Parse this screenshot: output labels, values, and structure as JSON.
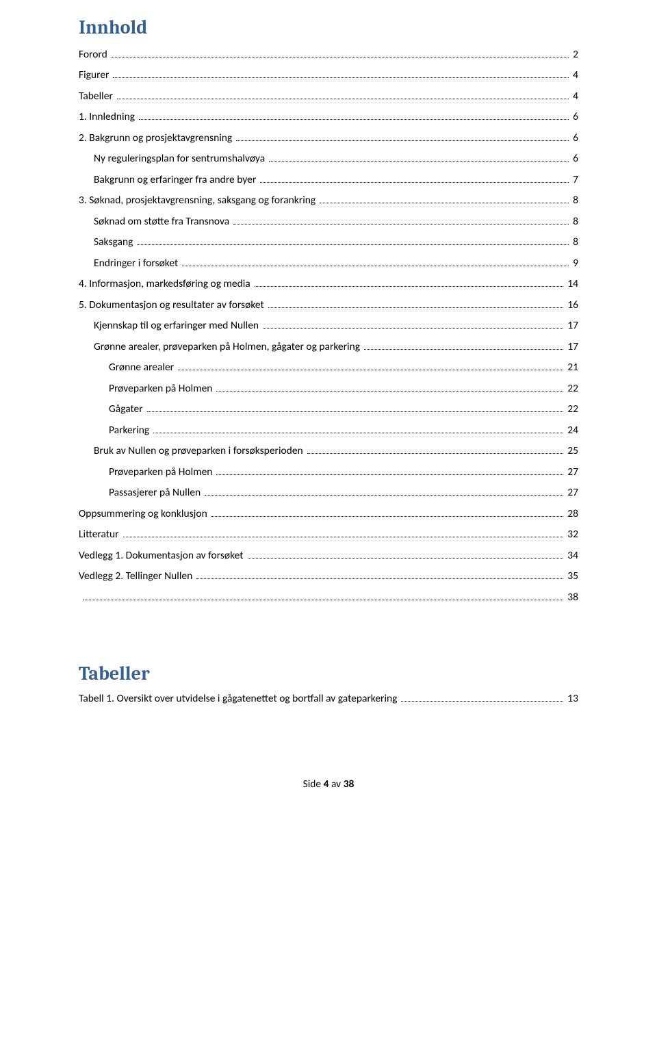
{
  "colors": {
    "heading": "#365f91",
    "text": "#000000",
    "background": "#ffffff",
    "dots": "#000000"
  },
  "typography": {
    "heading_font": "Cambria",
    "body_font": "Calibri",
    "heading_fontsize": 28,
    "body_fontsize": 15.5
  },
  "heading1": "Innhold",
  "toc": [
    {
      "label": "Forord",
      "page": "2",
      "indent": 0
    },
    {
      "label": "Figurer",
      "page": "4",
      "indent": 0
    },
    {
      "label": "Tabeller",
      "page": "4",
      "indent": 0
    },
    {
      "label": "1.   Innledning",
      "page": "6",
      "indent": 0
    },
    {
      "label": "2.   Bakgrunn og prosjektavgrensning",
      "page": "6",
      "indent": 0
    },
    {
      "label": "Ny reguleringsplan for sentrumshalvøya",
      "page": "6",
      "indent": 1
    },
    {
      "label": "Bakgrunn og erfaringer fra andre byer",
      "page": "7",
      "indent": 1
    },
    {
      "label": "3.   Søknad, prosjektavgrensning, saksgang og forankring",
      "page": "8",
      "indent": 0
    },
    {
      "label": "Søknad om støtte fra Transnova",
      "page": "8",
      "indent": 1
    },
    {
      "label": "Saksgang",
      "page": "8",
      "indent": 1
    },
    {
      "label": "Endringer i forsøket",
      "page": "9",
      "indent": 1
    },
    {
      "label": "4.   Informasjon, markedsføring og media",
      "page": "14",
      "indent": 0
    },
    {
      "label": "5.   Dokumentasjon og resultater av forsøket",
      "page": "16",
      "indent": 0
    },
    {
      "label": "Kjennskap til og erfaringer med Nullen",
      "page": "17",
      "indent": 1
    },
    {
      "label": "Grønne arealer, prøveparken på Holmen, gågater og parkering",
      "page": "17",
      "indent": 1
    },
    {
      "label": "Grønne arealer",
      "page": "21",
      "indent": 2
    },
    {
      "label": "Prøveparken på Holmen",
      "page": "22",
      "indent": 2
    },
    {
      "label": "Gågater",
      "page": "22",
      "indent": 2
    },
    {
      "label": "Parkering",
      "page": "24",
      "indent": 2
    },
    {
      "label": "Bruk av Nullen og prøveparken i forsøksperioden",
      "page": "25",
      "indent": 1
    },
    {
      "label": "Prøveparken på Holmen",
      "page": "27",
      "indent": 2
    },
    {
      "label": "Passasjerer på Nullen",
      "page": "27",
      "indent": 2
    },
    {
      "label": "Oppsummering og konklusjon",
      "page": "28",
      "indent": 0
    },
    {
      "label": "Litteratur",
      "page": "32",
      "indent": 0
    },
    {
      "label": "Vedlegg 1. Dokumentasjon av forsøket",
      "page": "34",
      "indent": 0
    },
    {
      "label": "Vedlegg 2. Tellinger Nullen",
      "page": "35",
      "indent": 0
    }
  ],
  "final_toc_entry": {
    "label": "",
    "page": "38",
    "indent": 0
  },
  "heading2": "Tabeller",
  "tables_toc": [
    {
      "label": "Tabell 1. Oversikt over utvidelse i gågatenettet og bortfall av gateparkering",
      "page": "13",
      "indent": 0
    }
  ],
  "footer": {
    "prefix": "Side ",
    "current": "4",
    "middle": " av ",
    "total": "38"
  }
}
